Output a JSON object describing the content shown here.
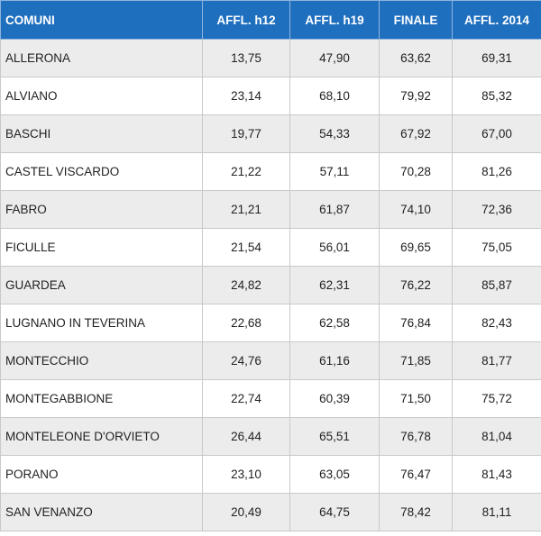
{
  "table": {
    "headers": [
      "COMUNI",
      "AFFL. h12",
      "AFFL. h19",
      "FINALE",
      "AFFL. 2014"
    ],
    "rows": [
      [
        "ALLERONA",
        "13,75",
        "47,90",
        "63,62",
        "69,31"
      ],
      [
        "ALVIANO",
        "23,14",
        "68,10",
        "79,92",
        "85,32"
      ],
      [
        "BASCHI",
        "19,77",
        "54,33",
        "67,92",
        "67,00"
      ],
      [
        "CASTEL VISCARDO",
        "21,22",
        "57,11",
        "70,28",
        "81,26"
      ],
      [
        "FABRO",
        "21,21",
        "61,87",
        "74,10",
        "72,36"
      ],
      [
        "FICULLE",
        "21,54",
        "56,01",
        "69,65",
        "75,05"
      ],
      [
        "GUARDEA",
        "24,82",
        "62,31",
        "76,22",
        "85,87"
      ],
      [
        "LUGNANO IN TEVERINA",
        "22,68",
        "62,58",
        "76,84",
        "82,43"
      ],
      [
        "MONTECCHIO",
        "24,76",
        "61,16",
        "71,85",
        "81,77"
      ],
      [
        "MONTEGABBIONE",
        "22,74",
        "60,39",
        "71,50",
        "75,72"
      ],
      [
        "MONTELEONE D'ORVIETO",
        "26,44",
        "65,51",
        "76,78",
        "81,04"
      ],
      [
        "PORANO",
        "23,10",
        "63,05",
        "76,47",
        "81,43"
      ],
      [
        "SAN VENANZO",
        "20,49",
        "64,75",
        "78,42",
        "81,11"
      ]
    ]
  },
  "colors": {
    "header_background": "#1f6fbf",
    "header_text": "#ffffff",
    "row_alt_background": "#ececec",
    "border": "#c9c9c9"
  }
}
